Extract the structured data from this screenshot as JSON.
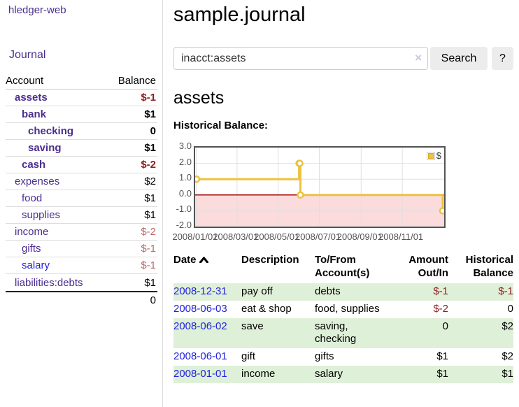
{
  "app": {
    "brand": "hledger-web",
    "nav_journal": "Journal"
  },
  "sidebar": {
    "headers": {
      "account": "Account",
      "balance": "Balance"
    },
    "accounts": [
      {
        "name": "assets",
        "balance": "$-1"
      },
      {
        "name": "bank",
        "balance": "$1"
      },
      {
        "name": "checking",
        "balance": "0"
      },
      {
        "name": "saving",
        "balance": "$1"
      },
      {
        "name": "cash",
        "balance": "$-2"
      },
      {
        "name": "expenses",
        "balance": "$2"
      },
      {
        "name": "food",
        "balance": "$1"
      },
      {
        "name": "supplies",
        "balance": "$1"
      },
      {
        "name": "income",
        "balance": "$-2"
      },
      {
        "name": "gifts",
        "balance": "$-1"
      },
      {
        "name": "salary",
        "balance": "$-1"
      },
      {
        "name": "liabilities:debts",
        "balance": "$1"
      }
    ],
    "total": "0"
  },
  "header": {
    "title": "sample.journal"
  },
  "search": {
    "value": "inacct:assets",
    "clear_icon": "×",
    "button_label": "Search",
    "help_label": "?"
  },
  "account_page": {
    "title": "assets",
    "chart_label": "Historical Balance:"
  },
  "chart_data": {
    "type": "line",
    "title": "Historical Balance",
    "series": [
      {
        "name": "$",
        "color": "#edc240",
        "steps": true,
        "points": [
          [
            "2008-01-01",
            1
          ],
          [
            "2008-06-01",
            2
          ],
          [
            "2008-06-02",
            2
          ],
          [
            "2008-06-03",
            0
          ],
          [
            "2008-12-31",
            -1
          ]
        ]
      }
    ],
    "xlim": [
      "2008-01-01",
      "2008-12-31"
    ],
    "ylim": [
      -2,
      3
    ],
    "yticks": [
      3,
      2,
      1,
      0,
      -1,
      -2
    ],
    "xticks": [
      "2008/01/01",
      "2008/03/01",
      "2008/05/01",
      "2008/07/01",
      "2008/09/01",
      "2008/11/01"
    ],
    "grid_on": true,
    "grid_color": "#e0e0e0",
    "zero_line_color": "#a40404",
    "negative_region_color": "#fbdbdb",
    "legend_position": "top-right"
  },
  "register": {
    "headers": {
      "date": "Date",
      "description": "Description",
      "accounts": "To/From\nAccount(s)",
      "amount": "Amount\nOut/In",
      "balance": "Historical\nBalance"
    },
    "rows": [
      {
        "date": "2008-12-31",
        "description": "pay off",
        "accounts": "debts",
        "amount": "$-1",
        "balance": "$-1"
      },
      {
        "date": "2008-06-03",
        "description": "eat & shop",
        "accounts": "food, supplies",
        "amount": "$-2",
        "balance": "0"
      },
      {
        "date": "2008-06-02",
        "description": "save",
        "accounts": "saving, checking",
        "amount": "0",
        "balance": "$2"
      },
      {
        "date": "2008-06-01",
        "description": "gift",
        "accounts": "gifts",
        "amount": "$1",
        "balance": "$2"
      },
      {
        "date": "2008-01-01",
        "description": "income",
        "accounts": "salary",
        "amount": "$1",
        "balance": "$1"
      }
    ]
  },
  "colors": {
    "link_purple": "#4b2d90",
    "link_blue": "#2222dd",
    "negative_strong": "#8f1d1d",
    "negative_soft": "#b96b6b",
    "row_stripe_green": "#dff0d8",
    "series_gold": "#edc240"
  }
}
